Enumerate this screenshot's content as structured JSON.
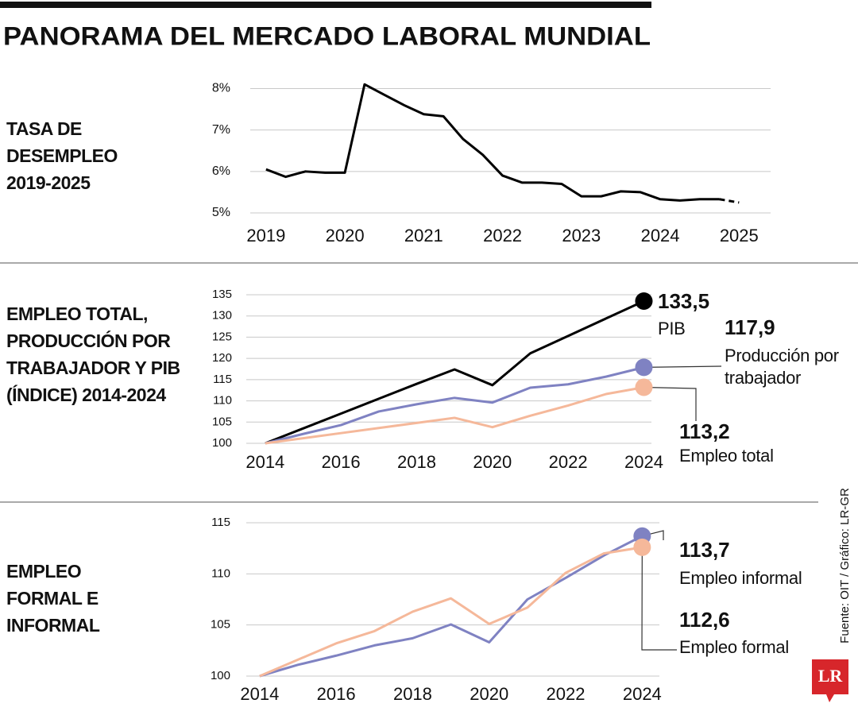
{
  "title": "PANORAMA DEL MERCADO LABORAL MUNDIAL",
  "source": "Fuente: OIT / Gráfico: LR-GR",
  "logo": "LR",
  "chart_data": [
    {
      "type": "line",
      "title": "TASA DE DESEMPLEO 2019-2025",
      "x": [
        2019,
        2019.25,
        2019.5,
        2019.75,
        2020,
        2020.25,
        2020.5,
        2020.75,
        2021,
        2021.25,
        2021.5,
        2021.75,
        2022,
        2022.25,
        2022.5,
        2022.75,
        2023,
        2023.25,
        2023.5,
        2023.75,
        2024,
        2024.25,
        2024.5,
        2024.75,
        2025
      ],
      "series": [
        {
          "color": "#000000",
          "line_style": "solid",
          "values": [
            6.05,
            5.87,
            6.0,
            5.97,
            5.97,
            8.1,
            7.85,
            7.6,
            7.38,
            7.33,
            6.78,
            6.4,
            5.9,
            5.73,
            5.73,
            5.7,
            5.4,
            5.4,
            5.52,
            5.5,
            5.33,
            5.3,
            5.33,
            5.33,
            null
          ]
        },
        {
          "color": "#000000",
          "line_style": "dashed",
          "values": [
            null,
            null,
            null,
            null,
            null,
            null,
            null,
            null,
            null,
            null,
            null,
            null,
            null,
            null,
            null,
            null,
            null,
            null,
            null,
            null,
            null,
            null,
            null,
            5.33,
            5.25
          ]
        }
      ],
      "xlim": [
        2018.8,
        2025.4
      ],
      "xticks": [
        2019,
        2020,
        2021,
        2022,
        2023,
        2024,
        2025
      ],
      "ylim": [
        5,
        8.2
      ],
      "yticks": [
        {
          "value": 5,
          "label": "5%"
        },
        {
          "value": 6,
          "label": "6%"
        },
        {
          "value": 7,
          "label": "7%"
        },
        {
          "value": 8,
          "label": "8%"
        }
      ],
      "grid": true
    },
    {
      "type": "line",
      "title": "EMPLEO TOTAL, PRODUCCIÓN POR TRABAJADOR Y PIB (ÍNDICE) 2014-2024",
      "x": [
        2014,
        2015,
        2016,
        2017,
        2018,
        2019,
        2020,
        2021,
        2022,
        2023,
        2024
      ],
      "series": [
        {
          "name": "PIB",
          "color": "#000000",
          "end_marker": true,
          "values": [
            100,
            103.5,
            107,
            110.5,
            114,
            117.4,
            113.7,
            121.2,
            125.3,
            129.4,
            133.5
          ],
          "value_labels": [
            null,
            null,
            null,
            null,
            null,
            null,
            null,
            null,
            null,
            null,
            "133,5"
          ]
        },
        {
          "name": "Producción por trabajador",
          "color": "#7f82c2",
          "end_marker": true,
          "values": [
            100,
            102.2,
            104.3,
            107.5,
            109.2,
            110.7,
            109.6,
            113.1,
            113.9,
            115.7,
            117.9
          ],
          "value_labels": [
            null,
            null,
            null,
            null,
            null,
            null,
            null,
            null,
            null,
            null,
            "117,9"
          ]
        },
        {
          "name": "Empleo total",
          "color": "#f5b89a",
          "end_marker": true,
          "values": [
            100,
            101.2,
            102.4,
            103.6,
            104.8,
            106.0,
            103.8,
            106.5,
            108.9,
            111.6,
            113.2
          ],
          "value_labels": [
            null,
            null,
            null,
            null,
            null,
            null,
            null,
            null,
            null,
            null,
            "113,2"
          ]
        }
      ],
      "xlim": [
        2013.5,
        2024.2
      ],
      "xticks": [
        2014,
        2016,
        2018,
        2020,
        2022,
        2024
      ],
      "ylim": [
        100,
        135
      ],
      "yticks": [
        100,
        105,
        110,
        115,
        120,
        125,
        130,
        135
      ],
      "grid": true
    },
    {
      "type": "line",
      "title": "EMPLEO FORMAL E INFORMAL",
      "x": [
        2014,
        2015,
        2016,
        2017,
        2018,
        2019,
        2020,
        2021,
        2022,
        2023,
        2024
      ],
      "series": [
        {
          "name": "Empleo informal",
          "color": "#7f82c2",
          "end_marker": true,
          "values": [
            100,
            101.1,
            102.0,
            103.0,
            103.7,
            105.05,
            103.3,
            107.5,
            109.6,
            111.8,
            113.7
          ],
          "value_labels": [
            null,
            null,
            null,
            null,
            null,
            null,
            null,
            null,
            null,
            null,
            "113,7"
          ]
        },
        {
          "name": "Empleo formal",
          "color": "#f5b89a",
          "end_marker": true,
          "values": [
            100,
            101.6,
            103.2,
            104.4,
            106.3,
            107.6,
            105.1,
            106.7,
            110.1,
            112.0,
            112.6
          ],
          "value_labels": [
            null,
            null,
            null,
            null,
            null,
            null,
            null,
            null,
            null,
            null,
            "112,6"
          ]
        }
      ],
      "xlim": [
        2013.65,
        2024.45
      ],
      "xticks": [
        2014,
        2016,
        2018,
        2020,
        2022,
        2024
      ],
      "ylim": [
        100,
        115
      ],
      "yticks": [
        100,
        105,
        110,
        115
      ],
      "grid": true
    }
  ]
}
